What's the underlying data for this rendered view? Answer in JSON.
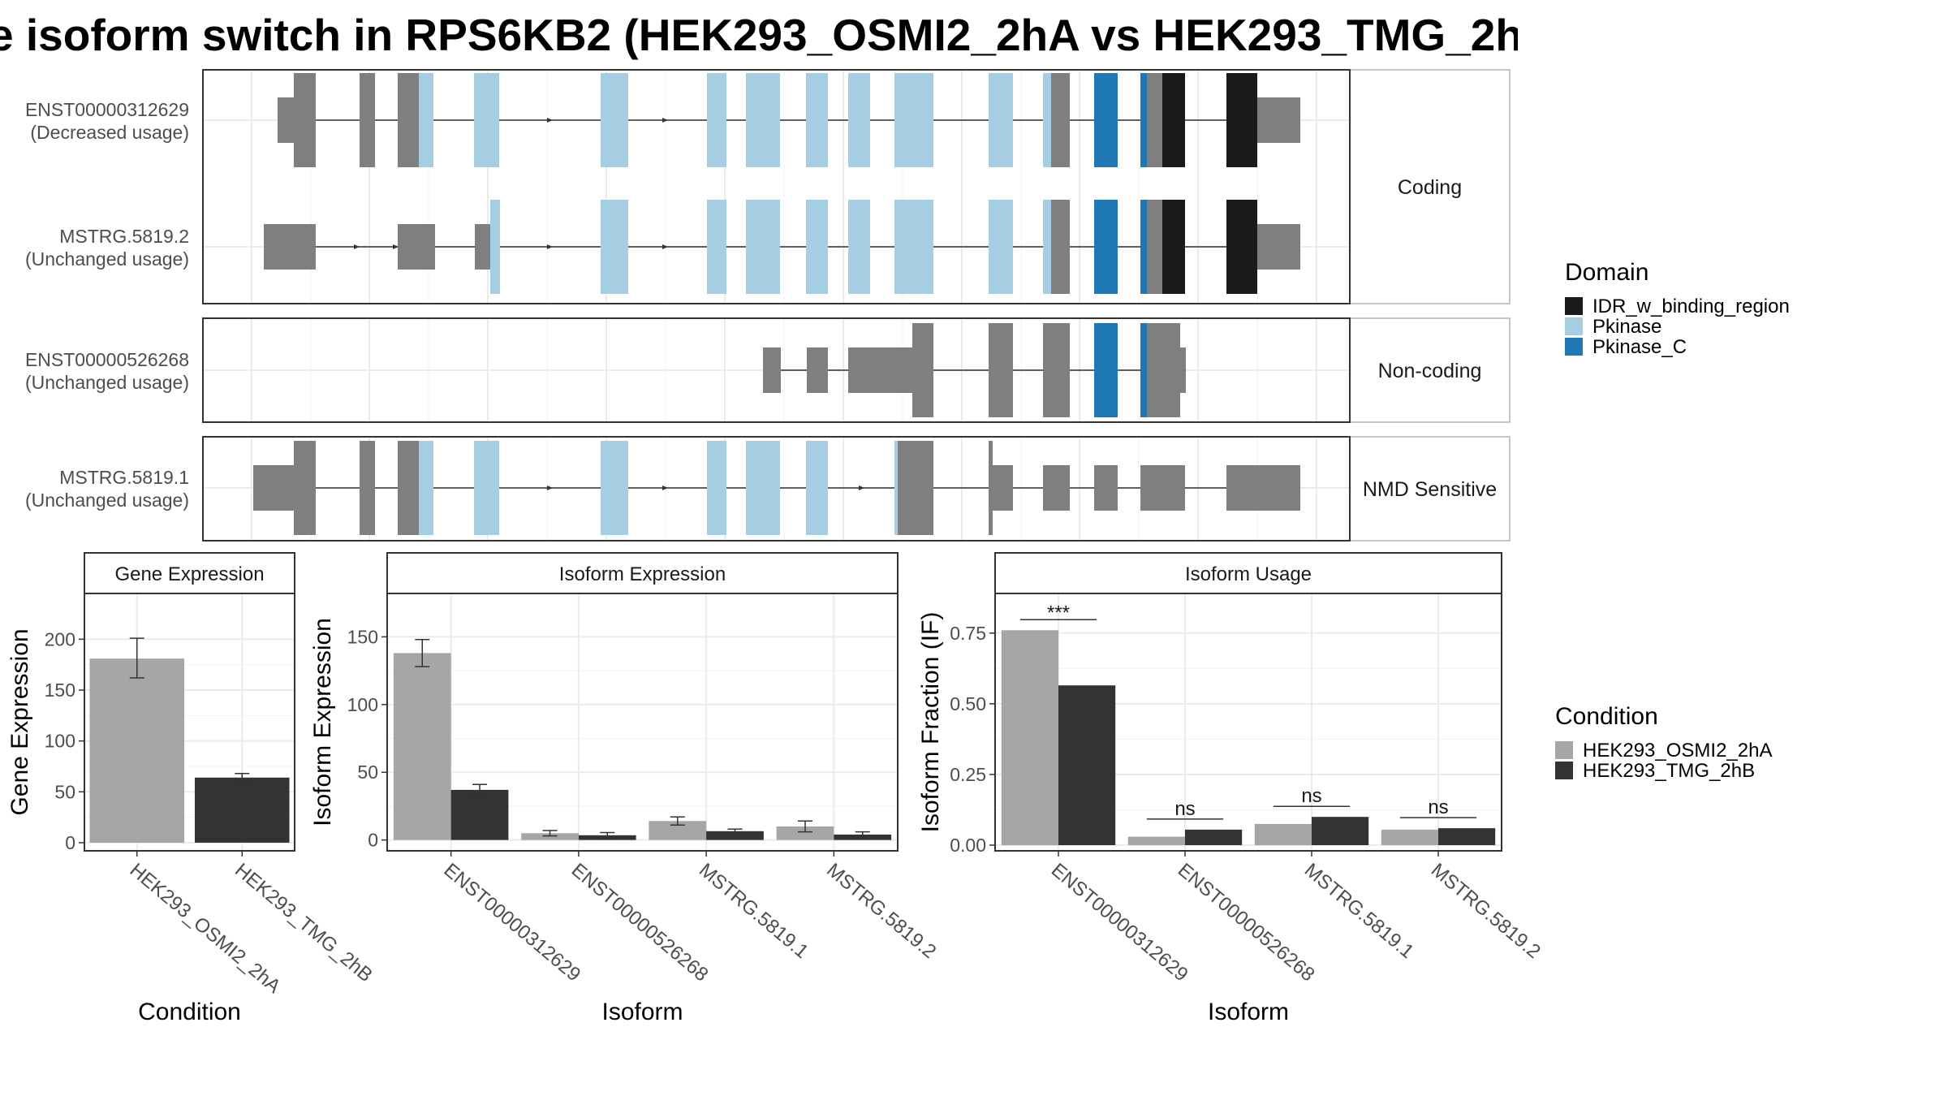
{
  "title": "e isoform switch in RPS6KB2 (HEK293_OSMI2_2hA vs HEK293_TMG_2h",
  "colors": {
    "exon": "#7f7f7f",
    "IDR_w_binding_region": "#1a1a1a",
    "Pkinase": "#a6cee3",
    "Pkinase_C": "#1f78b4",
    "HEK293_OSMI2_2hA": "#a6a6a6",
    "HEK293_TMG_2hB": "#333333"
  },
  "structure": {
    "facets": [
      "Coding",
      "Non-coding",
      "NMD Sensitive"
    ],
    "domain_legend": {
      "title": "Domain",
      "items": [
        "IDR_w_binding_region",
        "Pkinase",
        "Pkinase_C"
      ]
    },
    "isoforms": [
      {
        "id": "ENST00000312629",
        "usage": "(Decreased usage)",
        "facet": "Coding"
      },
      {
        "id": "MSTRG.5819.2",
        "usage": "(Unchanged usage)",
        "facet": "Coding"
      },
      {
        "id": "ENST00000526268",
        "usage": "(Unchanged usage)",
        "facet": "Non-coding"
      },
      {
        "id": "MSTRG.5819.1",
        "usage": "(Unchanged usage)",
        "facet": "NMD Sensitive"
      }
    ]
  },
  "condition_legend": {
    "title": "Condition",
    "items": [
      "HEK293_OSMI2_2hA",
      "HEK293_TMG_2hB"
    ]
  },
  "chart_data": [
    {
      "type": "bar",
      "title": "Gene Expression",
      "xlabel": "Condition",
      "ylabel": "Gene Expression",
      "categories": [
        "HEK293_OSMI2_2hA",
        "HEK293_TMG_2hB"
      ],
      "values": [
        181,
        64
      ],
      "errors": [
        [
          162,
          201
        ],
        [
          61,
          68
        ]
      ],
      "ylim": [
        -8,
        245
      ],
      "yticks": [
        "0",
        "50",
        "100",
        "150",
        "200"
      ]
    },
    {
      "type": "bar",
      "title": "Isoform Expression",
      "xlabel": "Isoform",
      "ylabel": "Isoform Expression",
      "categories": [
        "ENST00000312629",
        "ENST00000526268",
        "MSTRG.5819.1",
        "MSTRG.5819.2"
      ],
      "series": [
        {
          "name": "HEK293_OSMI2_2hA",
          "values": [
            138,
            5,
            14,
            10
          ],
          "errors": [
            [
              128,
              148
            ],
            [
              3,
              7
            ],
            [
              11,
              17
            ],
            [
              6,
              14
            ]
          ]
        },
        {
          "name": "HEK293_TMG_2hB",
          "values": [
            37,
            3.5,
            6.5,
            4
          ],
          "errors": [
            [
              33,
              41
            ],
            [
              1.5,
              5.5
            ],
            [
              5,
              8
            ],
            [
              2,
              6
            ]
          ]
        }
      ],
      "ylim": [
        -8,
        182
      ],
      "yticks": [
        "0",
        "50",
        "100",
        "150"
      ]
    },
    {
      "type": "bar",
      "title": "Isoform Usage",
      "xlabel": "Isoform",
      "ylabel": "Isoform Fraction (IF)",
      "categories": [
        "ENST00000312629",
        "ENST00000526268",
        "MSTRG.5819.1",
        "MSTRG.5819.2"
      ],
      "series": [
        {
          "name": "HEK293_OSMI2_2hA",
          "values": [
            0.76,
            0.03,
            0.075,
            0.055
          ]
        },
        {
          "name": "HEK293_TMG_2hB",
          "values": [
            0.565,
            0.055,
            0.1,
            0.06
          ]
        }
      ],
      "significance": [
        "***",
        "ns",
        "ns",
        "ns"
      ],
      "ylim": [
        -0.02,
        0.89
      ],
      "yticks": [
        "0.00",
        "0.25",
        "0.50",
        "0.75"
      ]
    }
  ]
}
